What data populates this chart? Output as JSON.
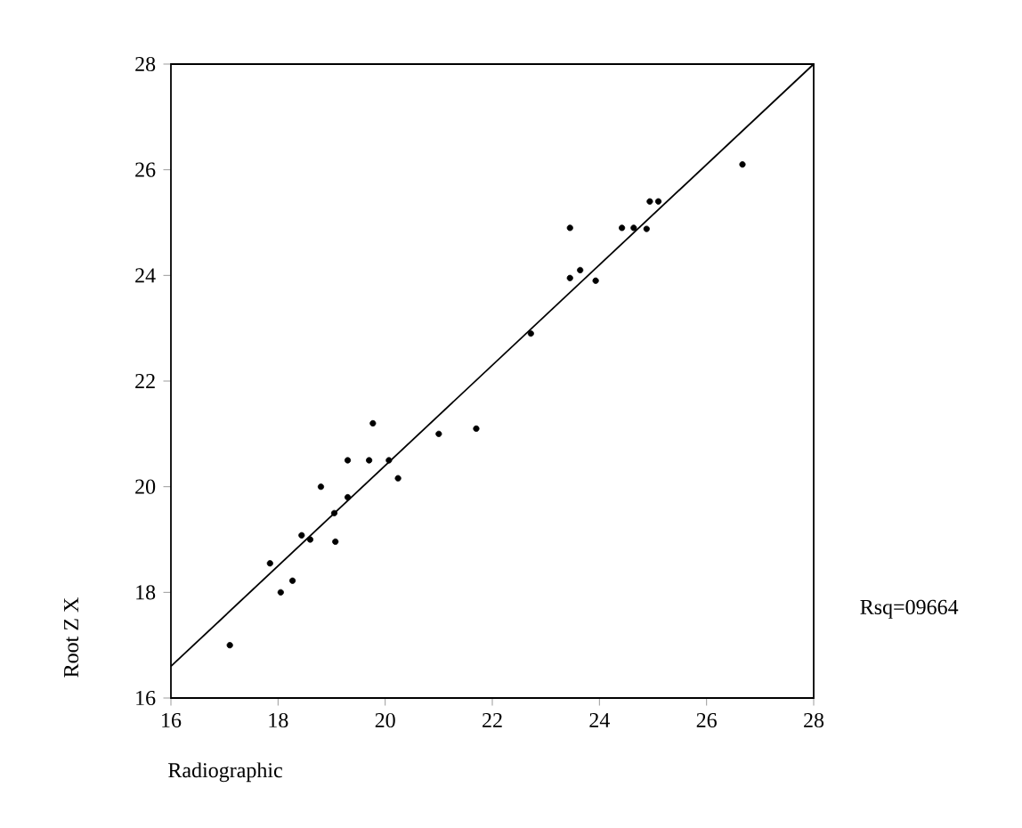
{
  "chart_data": {
    "type": "scatter",
    "xlabel": "Radiographic",
    "ylabel": "Root Z X",
    "annotations": [
      "Rsq=09664"
    ],
    "xlim": [
      16,
      28
    ],
    "ylim": [
      16,
      28
    ],
    "xticks": [
      16,
      18,
      20,
      22,
      24,
      26,
      28
    ],
    "yticks": [
      16,
      18,
      20,
      22,
      24,
      26,
      28
    ],
    "grid": false,
    "series": [
      {
        "color": "#000000",
        "marker": "circle",
        "x": [
          17.1,
          17.85,
          18.05,
          18.27,
          18.44,
          18.6,
          18.8,
          19.05,
          19.07,
          19.3,
          19.3,
          19.7,
          19.77,
          20.07,
          20.24,
          21.0,
          21.7,
          22.72,
          23.45,
          23.45,
          23.64,
          23.93,
          24.42,
          24.64,
          24.88,
          24.94,
          25.1,
          26.67
        ],
        "values": [
          17.0,
          18.55,
          18.0,
          18.22,
          19.08,
          19.0,
          20.0,
          19.5,
          18.96,
          19.8,
          20.5,
          20.5,
          21.2,
          20.5,
          20.16,
          21.0,
          21.1,
          22.9,
          24.9,
          23.95,
          24.1,
          23.9,
          24.9,
          24.9,
          24.88,
          25.4,
          25.4,
          26.1
        ]
      },
      {
        "type": "line",
        "color": "#000000",
        "marker": "none",
        "line_style": "solid",
        "x": [
          16,
          28
        ],
        "values": [
          16.6,
          28
        ]
      }
    ]
  }
}
